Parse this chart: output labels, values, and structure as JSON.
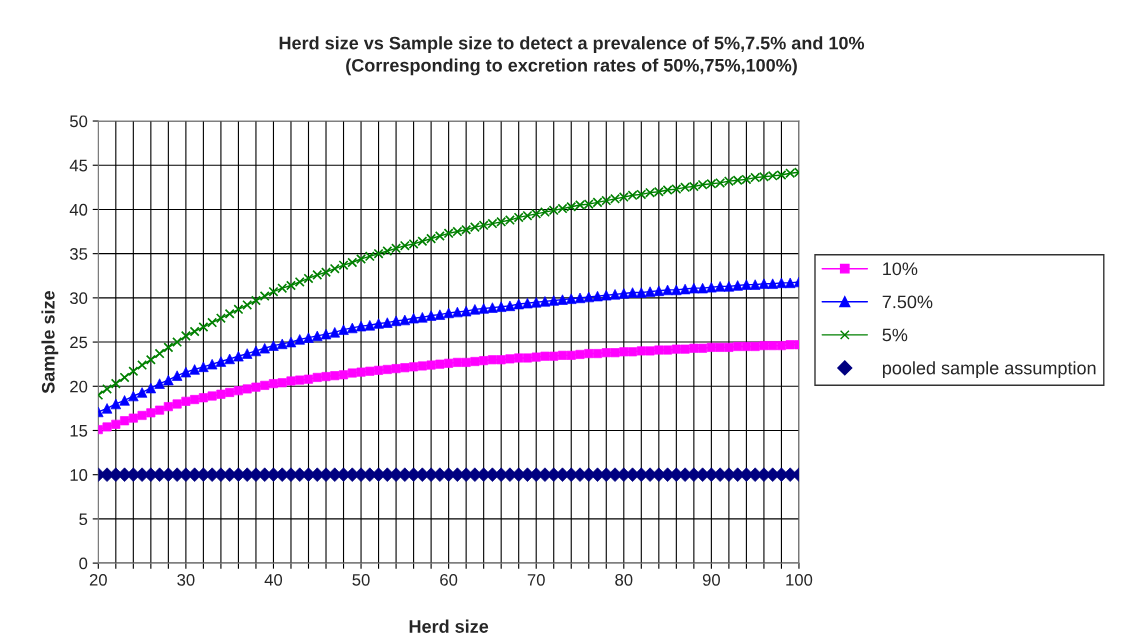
{
  "chart_data": {
    "type": "line",
    "title": "Herd size vs Sample size to detect a prevalence of 5%,7.5% and 10%",
    "subtitle": "(Corresponding to excretion rates of 50%,75%,100%)",
    "xlabel": "Herd size",
    "ylabel": "Sample size",
    "x": [
      20,
      21,
      22,
      23,
      24,
      25,
      26,
      27,
      28,
      29,
      30,
      31,
      32,
      33,
      34,
      35,
      36,
      37,
      38,
      39,
      40,
      41,
      42,
      43,
      44,
      45,
      46,
      47,
      48,
      49,
      50,
      51,
      52,
      53,
      54,
      55,
      56,
      57,
      58,
      59,
      60,
      61,
      62,
      63,
      64,
      65,
      66,
      67,
      68,
      69,
      70,
      71,
      72,
      73,
      74,
      75,
      76,
      77,
      78,
      79,
      80,
      81,
      82,
      83,
      84,
      85,
      86,
      87,
      88,
      89,
      90,
      91,
      92,
      93,
      94,
      95,
      96,
      97,
      98,
      99,
      100
    ],
    "series": [
      {
        "name": "10%",
        "color": "#ff00ff",
        "marker": "square",
        "line_style": "solid",
        "values": [
          15.1,
          15.4,
          15.7,
          16.1,
          16.4,
          16.7,
          17.0,
          17.3,
          17.7,
          18.0,
          18.3,
          18.5,
          18.7,
          18.9,
          19.1,
          19.3,
          19.5,
          19.7,
          19.9,
          20.1,
          20.3,
          20.4,
          20.6,
          20.7,
          20.8,
          21.0,
          21.1,
          21.2,
          21.3,
          21.5,
          21.6,
          21.7,
          21.8,
          21.9,
          22.0,
          22.1,
          22.2,
          22.3,
          22.4,
          22.5,
          22.6,
          22.7,
          22.7,
          22.8,
          22.9,
          23.0,
          23.0,
          23.1,
          23.2,
          23.2,
          23.3,
          23.4,
          23.4,
          23.5,
          23.5,
          23.6,
          23.7,
          23.7,
          23.8,
          23.8,
          23.9,
          23.9,
          24.0,
          24.0,
          24.1,
          24.1,
          24.2,
          24.2,
          24.3,
          24.3,
          24.4,
          24.4,
          24.4,
          24.5,
          24.5,
          24.5,
          24.6,
          24.6,
          24.6,
          24.7,
          24.7
        ]
      },
      {
        "name": "7.50%",
        "color": "#0000ff",
        "marker": "triangle",
        "line_style": "solid",
        "values": [
          17.1,
          17.5,
          18.0,
          18.4,
          18.9,
          19.3,
          19.8,
          20.3,
          20.7,
          21.2,
          21.6,
          21.9,
          22.2,
          22.5,
          22.8,
          23.1,
          23.4,
          23.7,
          24.0,
          24.3,
          24.6,
          24.8,
          25.0,
          25.3,
          25.5,
          25.7,
          25.9,
          26.1,
          26.4,
          26.6,
          26.8,
          26.9,
          27.1,
          27.2,
          27.4,
          27.5,
          27.7,
          27.8,
          28.0,
          28.1,
          28.3,
          28.4,
          28.5,
          28.7,
          28.8,
          28.9,
          29.0,
          29.1,
          29.3,
          29.4,
          29.5,
          29.6,
          29.7,
          29.8,
          29.9,
          30.0,
          30.1,
          30.2,
          30.3,
          30.4,
          30.5,
          30.6,
          30.6,
          30.7,
          30.8,
          30.9,
          30.9,
          31.0,
          31.1,
          31.1,
          31.2,
          31.3,
          31.3,
          31.4,
          31.5,
          31.5,
          31.6,
          31.6,
          31.7,
          31.7,
          31.8
        ]
      },
      {
        "name": "5%",
        "color": "#008000",
        "marker": "cross",
        "line_style": "solid",
        "values": [
          19.0,
          19.7,
          20.3,
          21.0,
          21.7,
          22.4,
          23.0,
          23.7,
          24.4,
          25.0,
          25.7,
          26.2,
          26.7,
          27.2,
          27.7,
          28.2,
          28.7,
          29.2,
          29.7,
          30.2,
          30.7,
          31.1,
          31.4,
          31.8,
          32.2,
          32.6,
          32.9,
          33.3,
          33.7,
          34.0,
          34.4,
          34.7,
          35.0,
          35.3,
          35.6,
          35.9,
          36.1,
          36.4,
          36.7,
          37.0,
          37.3,
          37.5,
          37.7,
          38.0,
          38.2,
          38.4,
          38.6,
          38.8,
          39.1,
          39.3,
          39.5,
          39.7,
          39.9,
          40.1,
          40.3,
          40.5,
          40.6,
          40.8,
          41.0,
          41.2,
          41.4,
          41.6,
          41.7,
          41.9,
          42.0,
          42.2,
          42.3,
          42.5,
          42.6,
          42.8,
          42.9,
          43.0,
          43.2,
          43.3,
          43.4,
          43.6,
          43.7,
          43.8,
          43.9,
          44.1,
          44.2
        ]
      },
      {
        "name": "pooled sample assumption",
        "type": "scatter",
        "color": "#000080",
        "marker": "diamond",
        "values": [
          10,
          10,
          10,
          10,
          10,
          10,
          10,
          10,
          10,
          10,
          10,
          10,
          10,
          10,
          10,
          10,
          10,
          10,
          10,
          10,
          10,
          10,
          10,
          10,
          10,
          10,
          10,
          10,
          10,
          10,
          10,
          10,
          10,
          10,
          10,
          10,
          10,
          10,
          10,
          10,
          10,
          10,
          10,
          10,
          10,
          10,
          10,
          10,
          10,
          10,
          10,
          10,
          10,
          10,
          10,
          10,
          10,
          10,
          10,
          10,
          10,
          10,
          10,
          10,
          10,
          10,
          10,
          10,
          10,
          10,
          10,
          10,
          10,
          10,
          10,
          10,
          10,
          10,
          10,
          10,
          10
        ]
      }
    ],
    "xlim": [
      20,
      100
    ],
    "xticks": [
      20,
      {
        "value": 22,
        "label": null
      },
      {
        "value": 24,
        "label": null
      },
      {
        "value": 26,
        "label": null
      },
      {
        "value": 28,
        "label": null
      },
      30,
      {
        "value": 32,
        "label": null
      },
      {
        "value": 34,
        "label": null
      },
      {
        "value": 36,
        "label": null
      },
      {
        "value": 38,
        "label": null
      },
      40,
      {
        "value": 42,
        "label": null
      },
      {
        "value": 44,
        "label": null
      },
      {
        "value": 46,
        "label": null
      },
      {
        "value": 48,
        "label": null
      },
      50,
      {
        "value": 52,
        "label": null
      },
      {
        "value": 54,
        "label": null
      },
      {
        "value": 56,
        "label": null
      },
      {
        "value": 58,
        "label": null
      },
      60,
      {
        "value": 62,
        "label": null
      },
      {
        "value": 64,
        "label": null
      },
      {
        "value": 66,
        "label": null
      },
      {
        "value": 68,
        "label": null
      },
      70,
      {
        "value": 72,
        "label": null
      },
      {
        "value": 74,
        "label": null
      },
      {
        "value": 76,
        "label": null
      },
      {
        "value": 78,
        "label": null
      },
      80,
      {
        "value": 82,
        "label": null
      },
      {
        "value": 84,
        "label": null
      },
      {
        "value": 86,
        "label": null
      },
      {
        "value": 88,
        "label": null
      },
      90,
      {
        "value": 92,
        "label": null
      },
      {
        "value": 94,
        "label": null
      },
      {
        "value": 96,
        "label": null
      },
      {
        "value": 98,
        "label": null
      },
      100
    ],
    "ylim": [
      0,
      50
    ],
    "yticks": [
      0,
      5,
      10,
      15,
      20,
      25,
      30,
      35,
      40,
      45,
      50
    ],
    "grid": true,
    "legend": "right"
  }
}
